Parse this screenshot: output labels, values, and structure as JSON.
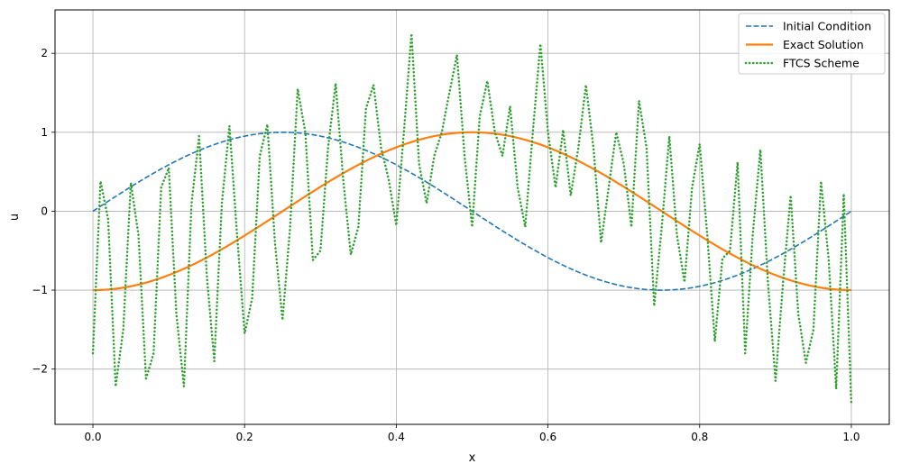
{
  "chart_data": {
    "type": "line",
    "title": "",
    "xlabel": "x",
    "ylabel": "u",
    "xlim": [
      -0.05,
      1.05
    ],
    "ylim": [
      -2.7,
      2.55
    ],
    "xticks": [
      0.0,
      0.2,
      0.4,
      0.6,
      0.8,
      1.0
    ],
    "xtick_labels": [
      "0.0",
      "0.2",
      "0.4",
      "0.6",
      "0.8",
      "1.0"
    ],
    "yticks": [
      -2,
      -1,
      0,
      1,
      2
    ],
    "ytick_labels": [
      "−2",
      "−1",
      "0",
      "1",
      "2"
    ],
    "grid": true,
    "legend_position": "top-right",
    "series": [
      {
        "name": "Initial Condition",
        "color": "#1f77b4",
        "style": "dashed",
        "function": "sin(2*pi*x)",
        "x_range": [
          0,
          1
        ]
      },
      {
        "name": "Exact Solution",
        "color": "#ff7f0e",
        "style": "solid",
        "function": "-cos(2*pi*x)",
        "x_range": [
          0,
          1
        ]
      },
      {
        "name": "FTCS Scheme",
        "color": "#2ca02c",
        "style": "dotted",
        "x": [
          0.0,
          0.01,
          0.02,
          0.03,
          0.04,
          0.05,
          0.06,
          0.07,
          0.08,
          0.09,
          0.1,
          0.11,
          0.12,
          0.13,
          0.14,
          0.15,
          0.16,
          0.17,
          0.18,
          0.19,
          0.2,
          0.21,
          0.22,
          0.23,
          0.24,
          0.25,
          0.26,
          0.27,
          0.28,
          0.29,
          0.3,
          0.31,
          0.32,
          0.33,
          0.34,
          0.35,
          0.36,
          0.37,
          0.38,
          0.39,
          0.4,
          0.41,
          0.42,
          0.43,
          0.44,
          0.45,
          0.46,
          0.47,
          0.48,
          0.49,
          0.5,
          0.51,
          0.52,
          0.53,
          0.54,
          0.55,
          0.56,
          0.57,
          0.58,
          0.59,
          0.6,
          0.61,
          0.62,
          0.63,
          0.64,
          0.65,
          0.66,
          0.67,
          0.68,
          0.69,
          0.7,
          0.71,
          0.72,
          0.73,
          0.74,
          0.75,
          0.76,
          0.77,
          0.78,
          0.79,
          0.8,
          0.81,
          0.82,
          0.83,
          0.84,
          0.85,
          0.86,
          0.87,
          0.88,
          0.89,
          0.9,
          0.91,
          0.92,
          0.93,
          0.94,
          0.95,
          0.96,
          0.97,
          0.98,
          0.99,
          1.0
        ],
        "values": [
          -1.8,
          0.38,
          -0.1,
          -2.22,
          -1.5,
          0.36,
          -0.3,
          -2.12,
          -1.8,
          0.3,
          0.55,
          -1.3,
          -2.22,
          0.1,
          0.95,
          -0.8,
          -1.9,
          0.1,
          1.08,
          -0.3,
          -1.55,
          -1.1,
          0.7,
          1.1,
          -0.4,
          -1.38,
          -0.2,
          1.55,
          1.0,
          -0.62,
          -0.5,
          0.8,
          1.62,
          0.4,
          -0.55,
          -0.2,
          1.3,
          1.6,
          0.8,
          0.4,
          -0.18,
          1.0,
          2.25,
          0.6,
          0.1,
          0.7,
          1.0,
          1.5,
          1.98,
          0.7,
          -0.2,
          1.2,
          1.65,
          1.0,
          0.7,
          1.33,
          0.3,
          -0.2,
          1.0,
          2.12,
          1.0,
          0.3,
          1.03,
          0.2,
          0.8,
          1.6,
          0.8,
          -0.4,
          0.3,
          1.0,
          0.6,
          -0.2,
          1.4,
          0.8,
          -1.2,
          -0.2,
          0.95,
          -0.3,
          -0.9,
          0.3,
          0.85,
          -0.3,
          -1.65,
          -0.6,
          -0.5,
          0.62,
          -1.8,
          -0.3,
          0.78,
          -0.9,
          -2.15,
          -0.9,
          0.2,
          -1.3,
          -1.92,
          -1.5,
          0.38,
          -0.6,
          -2.25,
          0.22,
          -2.45
        ]
      }
    ]
  }
}
